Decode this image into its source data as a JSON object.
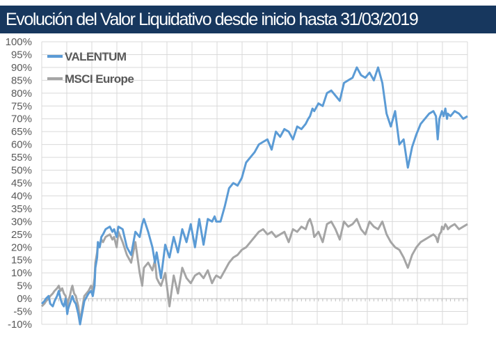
{
  "header": {
    "title": "Evolución del Valor Liquidativo desde inicio hasta 31/03/2019"
  },
  "chart_data": {
    "type": "line",
    "title": "Evolución del Valor Liquidativo desde inicio hasta 31/03/2019",
    "xlabel": "",
    "ylabel": "",
    "ylim": [
      -10,
      100
    ],
    "y_ticks": [
      "-10%",
      "-5%",
      "0%",
      "5%",
      "10%",
      "15%",
      "20%",
      "25%",
      "30%",
      "35%",
      "40%",
      "45%",
      "50%",
      "55%",
      "60%",
      "65%",
      "70%",
      "75%",
      "80%",
      "85%",
      "90%",
      "95%",
      "100%"
    ],
    "x_axis": "time index, unlabeled",
    "grid": true,
    "legend_position": "top-left",
    "series": [
      {
        "name": "VALENTUM",
        "color": "#5b9bd5",
        "x": [
          0,
          3,
          5,
          8,
          10,
          13,
          15,
          18,
          20,
          22,
          24,
          26,
          28,
          30,
          31,
          33,
          35,
          36,
          38,
          40,
          43,
          45,
          50,
          55,
          58,
          60,
          62,
          63,
          65,
          66,
          68,
          70,
          72,
          75,
          80,
          83,
          85,
          88,
          90,
          95,
          100,
          105,
          110,
          115,
          118,
          120,
          125,
          130,
          133,
          135,
          138,
          140,
          145,
          150,
          155,
          160,
          165,
          170,
          175,
          180,
          185,
          190,
          195,
          200,
          203,
          205,
          210,
          215,
          220,
          225,
          230,
          235,
          240,
          245,
          250,
          255,
          260,
          265,
          270,
          275,
          280,
          285,
          290,
          295,
          300,
          305,
          310,
          313,
          315,
          318,
          320,
          325,
          330,
          335,
          340,
          345,
          350,
          355,
          360,
          365,
          370,
          375,
          380,
          385,
          390,
          395,
          400,
          405,
          410,
          415,
          420,
          425,
          430,
          435,
          440,
          445,
          450,
          455,
          460,
          463,
          465,
          467,
          469,
          470,
          472,
          474,
          476,
          477,
          480,
          485,
          490,
          495,
          500
        ],
        "values": [
          -2,
          -1,
          0,
          1,
          -2,
          -3,
          -1,
          1,
          3,
          0,
          -2,
          -3,
          0,
          -6,
          -4,
          -2,
          0,
          1,
          -1,
          -2,
          -6,
          -10,
          -1,
          2,
          3,
          1,
          5,
          12,
          16,
          22,
          20,
          24,
          25,
          27,
          28,
          26,
          27,
          24,
          28,
          27,
          20,
          17,
          26,
          24,
          29,
          31,
          26,
          20,
          14,
          18,
          12,
          8,
          21,
          16,
          24,
          18,
          27,
          22,
          29,
          20,
          31,
          21,
          31,
          30,
          32,
          30,
          30,
          36,
          43,
          45,
          44,
          47,
          53,
          55,
          57,
          60,
          61,
          62,
          58,
          65,
          63,
          66,
          65,
          62,
          67,
          66,
          68,
          70,
          71,
          74,
          73,
          76,
          75,
          80,
          81,
          79,
          77,
          84,
          85,
          86,
          90,
          87,
          86,
          88,
          85,
          90,
          84,
          72,
          67,
          73,
          60,
          62,
          51,
          59,
          64,
          68,
          70,
          72,
          73,
          71,
          62,
          70,
          72,
          73,
          71,
          74,
          70,
          72,
          71,
          73,
          72,
          70,
          71
        ]
      },
      {
        "name": "MSCI Europe",
        "color": "#a5a5a5",
        "x": [
          0,
          3,
          5,
          8,
          10,
          13,
          15,
          18,
          20,
          22,
          24,
          26,
          28,
          30,
          31,
          33,
          35,
          36,
          38,
          40,
          43,
          45,
          50,
          55,
          58,
          60,
          62,
          63,
          65,
          66,
          68,
          70,
          72,
          75,
          80,
          83,
          85,
          88,
          90,
          95,
          100,
          105,
          110,
          115,
          118,
          120,
          125,
          130,
          133,
          135,
          138,
          140,
          145,
          150,
          155,
          160,
          165,
          170,
          175,
          180,
          185,
          190,
          195,
          200,
          203,
          205,
          210,
          215,
          220,
          225,
          230,
          235,
          240,
          245,
          250,
          255,
          260,
          265,
          270,
          275,
          280,
          285,
          290,
          295,
          300,
          305,
          310,
          313,
          315,
          318,
          320,
          325,
          330,
          335,
          340,
          345,
          350,
          355,
          360,
          365,
          370,
          375,
          380,
          385,
          390,
          395,
          400,
          405,
          410,
          415,
          420,
          425,
          430,
          435,
          440,
          445,
          450,
          455,
          460,
          463,
          465,
          467,
          469,
          470,
          472,
          474,
          476,
          477,
          480,
          485,
          490,
          495,
          500
        ],
        "values": [
          -3,
          -2,
          -1,
          0,
          1,
          2,
          3,
          4,
          5,
          3,
          4,
          2,
          1,
          -3,
          -1,
          1,
          4,
          5,
          2,
          1,
          -3,
          -9,
          1,
          3,
          5,
          3,
          8,
          14,
          18,
          22,
          20,
          23,
          22,
          24,
          25,
          23,
          24,
          20,
          26,
          22,
          17,
          14,
          22,
          10,
          5,
          12,
          14,
          11,
          15,
          8,
          6,
          5,
          10,
          -3,
          9,
          2,
          12,
          8,
          6,
          9,
          10,
          8,
          11,
          6,
          8,
          9,
          8,
          11,
          14,
          16,
          17,
          19,
          20,
          22,
          24,
          26,
          27,
          25,
          26,
          24,
          25,
          26,
          22,
          27,
          26,
          28,
          27,
          30,
          31,
          28,
          24,
          26,
          22,
          29,
          30,
          27,
          23,
          30,
          28,
          29,
          31,
          27,
          25,
          30,
          28,
          27,
          30,
          25,
          22,
          20,
          19,
          16,
          12,
          17,
          20,
          22,
          23,
          24,
          25,
          24,
          22,
          25,
          26,
          28,
          27,
          29,
          28,
          27,
          28,
          29,
          27,
          28,
          29
        ]
      }
    ]
  }
}
